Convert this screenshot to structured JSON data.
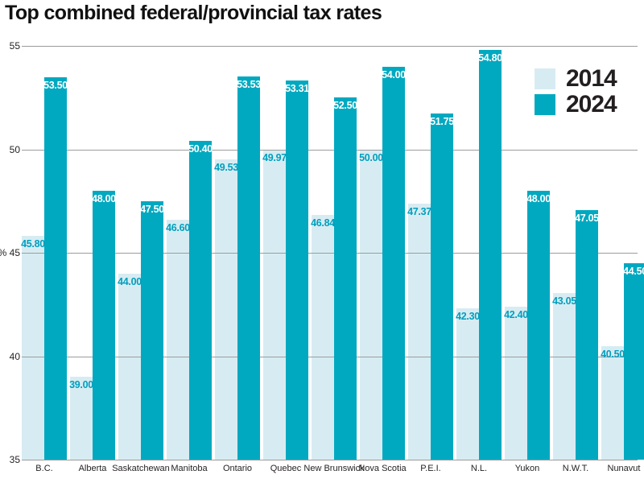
{
  "title": "Top combined federal/provincial tax rates",
  "legend": {
    "items": [
      {
        "label": "2014",
        "color": "#d7ecf2"
      },
      {
        "label": "2024",
        "color": "#00a9c0"
      }
    ]
  },
  "axis": {
    "ytick_labels": [
      "55",
      "50",
      "% 45",
      "40",
      "35"
    ],
    "grid_color": "#9c9c9c"
  },
  "chart_data": {
    "type": "bar",
    "title": "Top combined federal/provincial tax rates",
    "categories": [
      "B.C.",
      "Alberta",
      "Saskatchewan",
      "Manitoba",
      "Ontario",
      "Quebec",
      "New Brunswick",
      "Nova Scotia",
      "P.E.I.",
      "N.L.",
      "Yukon",
      "N.W.T.",
      "Nunavut"
    ],
    "series": [
      {
        "name": "2014",
        "color": "#d7ecf2",
        "label_color": "#009fbe",
        "values": [
          45.8,
          39.0,
          44.0,
          46.6,
          49.53,
          49.97,
          46.84,
          50.0,
          47.37,
          42.3,
          42.4,
          43.05,
          40.5
        ]
      },
      {
        "name": "2024",
        "color": "#00a9c0",
        "label_color": "#ffffff",
        "values": [
          53.5,
          48.0,
          47.5,
          50.4,
          53.53,
          53.31,
          52.5,
          54.0,
          51.75,
          54.8,
          48.0,
          47.05,
          44.5
        ]
      }
    ],
    "xlabel": "",
    "ylabel": "%",
    "ylim": [
      35,
      55
    ],
    "yticks": [
      55,
      50,
      45,
      40,
      35
    ],
    "grid": true,
    "legend_position": "top-right",
    "value_label_decimals": 2
  }
}
